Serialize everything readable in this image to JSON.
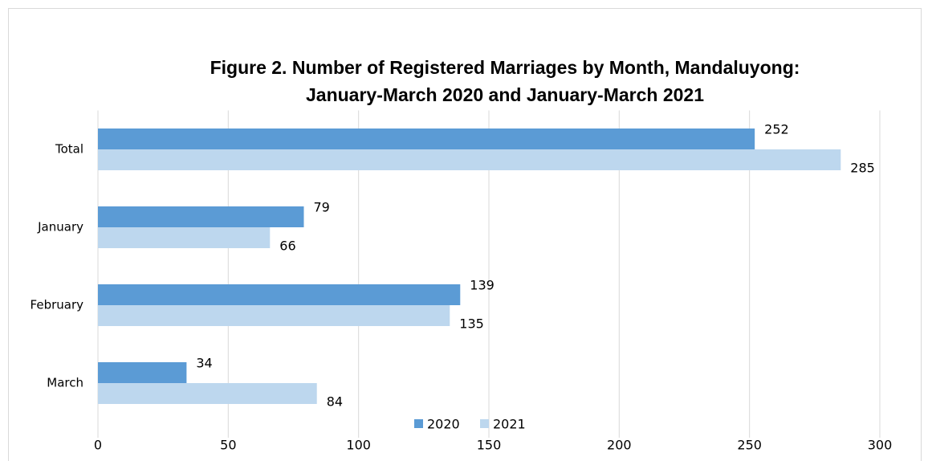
{
  "chart_data": {
    "type": "bar",
    "orientation": "horizontal",
    "title": [
      "Figure 2. Number of Registered Marriages by Month, Mandaluyong:",
      "January-March 2020 and January-March 2021"
    ],
    "categories": [
      "Total",
      "January",
      "February",
      "March"
    ],
    "series": [
      {
        "name": "2020",
        "color": "#5b9bd5",
        "values": [
          252,
          79,
          139,
          34
        ]
      },
      {
        "name": "2021",
        "color": "#bdd7ee",
        "values": [
          285,
          66,
          135,
          84
        ]
      }
    ],
    "xlim": [
      0,
      300
    ],
    "xticks": [
      0,
      50,
      100,
      150,
      200,
      250,
      300
    ],
    "grid": true,
    "legend": "bottom"
  }
}
